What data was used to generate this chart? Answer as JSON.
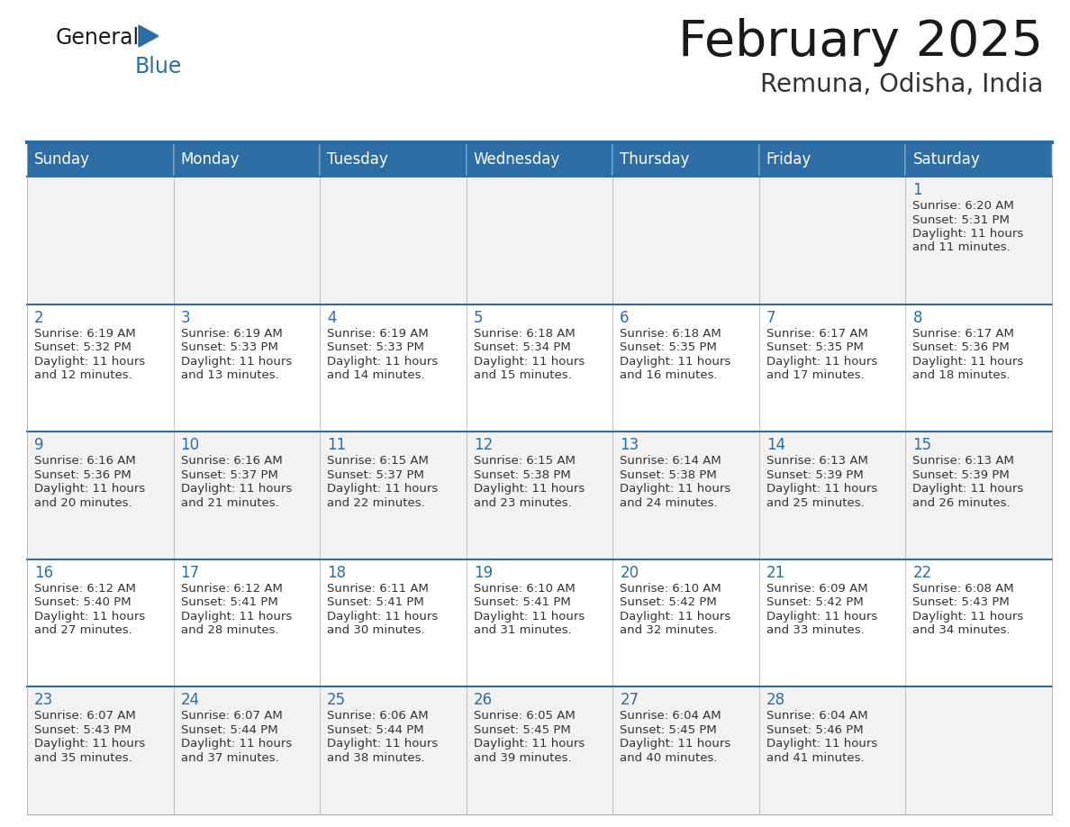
{
  "title": "February 2025",
  "subtitle": "Remuna, Odisha, India",
  "days_of_week": [
    "Sunday",
    "Monday",
    "Tuesday",
    "Wednesday",
    "Thursday",
    "Friday",
    "Saturday"
  ],
  "header_bg": "#2E6DA4",
  "header_text": "#FFFFFF",
  "cell_bg_odd": "#F2F2F2",
  "cell_bg_even": "#FFFFFF",
  "border_color": "#AAAAAA",
  "row_divider_color": "#2E6DA4",
  "title_color": "#1a1a1a",
  "subtitle_color": "#333333",
  "day_num_color": "#2E6DA4",
  "cell_text_color": "#333333",
  "logo_general_color": "#1a1a1a",
  "logo_blue_color": "#2E6DA4",
  "logo_triangle_color": "#2E6DA4",
  "calendar_data": [
    [
      null,
      null,
      null,
      null,
      null,
      null,
      {
        "day": 1,
        "sunrise": "6:20 AM",
        "sunset": "5:31 PM",
        "daylight": "11 hours and 11 minutes."
      }
    ],
    [
      {
        "day": 2,
        "sunrise": "6:19 AM",
        "sunset": "5:32 PM",
        "daylight": "11 hours and 12 minutes."
      },
      {
        "day": 3,
        "sunrise": "6:19 AM",
        "sunset": "5:33 PM",
        "daylight": "11 hours and 13 minutes."
      },
      {
        "day": 4,
        "sunrise": "6:19 AM",
        "sunset": "5:33 PM",
        "daylight": "11 hours and 14 minutes."
      },
      {
        "day": 5,
        "sunrise": "6:18 AM",
        "sunset": "5:34 PM",
        "daylight": "11 hours and 15 minutes."
      },
      {
        "day": 6,
        "sunrise": "6:18 AM",
        "sunset": "5:35 PM",
        "daylight": "11 hours and 16 minutes."
      },
      {
        "day": 7,
        "sunrise": "6:17 AM",
        "sunset": "5:35 PM",
        "daylight": "11 hours and 17 minutes."
      },
      {
        "day": 8,
        "sunrise": "6:17 AM",
        "sunset": "5:36 PM",
        "daylight": "11 hours and 18 minutes."
      }
    ],
    [
      {
        "day": 9,
        "sunrise": "6:16 AM",
        "sunset": "5:36 PM",
        "daylight": "11 hours and 20 minutes."
      },
      {
        "day": 10,
        "sunrise": "6:16 AM",
        "sunset": "5:37 PM",
        "daylight": "11 hours and 21 minutes."
      },
      {
        "day": 11,
        "sunrise": "6:15 AM",
        "sunset": "5:37 PM",
        "daylight": "11 hours and 22 minutes."
      },
      {
        "day": 12,
        "sunrise": "6:15 AM",
        "sunset": "5:38 PM",
        "daylight": "11 hours and 23 minutes."
      },
      {
        "day": 13,
        "sunrise": "6:14 AM",
        "sunset": "5:38 PM",
        "daylight": "11 hours and 24 minutes."
      },
      {
        "day": 14,
        "sunrise": "6:13 AM",
        "sunset": "5:39 PM",
        "daylight": "11 hours and 25 minutes."
      },
      {
        "day": 15,
        "sunrise": "6:13 AM",
        "sunset": "5:39 PM",
        "daylight": "11 hours and 26 minutes."
      }
    ],
    [
      {
        "day": 16,
        "sunrise": "6:12 AM",
        "sunset": "5:40 PM",
        "daylight": "11 hours and 27 minutes."
      },
      {
        "day": 17,
        "sunrise": "6:12 AM",
        "sunset": "5:41 PM",
        "daylight": "11 hours and 28 minutes."
      },
      {
        "day": 18,
        "sunrise": "6:11 AM",
        "sunset": "5:41 PM",
        "daylight": "11 hours and 30 minutes."
      },
      {
        "day": 19,
        "sunrise": "6:10 AM",
        "sunset": "5:41 PM",
        "daylight": "11 hours and 31 minutes."
      },
      {
        "day": 20,
        "sunrise": "6:10 AM",
        "sunset": "5:42 PM",
        "daylight": "11 hours and 32 minutes."
      },
      {
        "day": 21,
        "sunrise": "6:09 AM",
        "sunset": "5:42 PM",
        "daylight": "11 hours and 33 minutes."
      },
      {
        "day": 22,
        "sunrise": "6:08 AM",
        "sunset": "5:43 PM",
        "daylight": "11 hours and 34 minutes."
      }
    ],
    [
      {
        "day": 23,
        "sunrise": "6:07 AM",
        "sunset": "5:43 PM",
        "daylight": "11 hours and 35 minutes."
      },
      {
        "day": 24,
        "sunrise": "6:07 AM",
        "sunset": "5:44 PM",
        "daylight": "11 hours and 37 minutes."
      },
      {
        "day": 25,
        "sunrise": "6:06 AM",
        "sunset": "5:44 PM",
        "daylight": "11 hours and 38 minutes."
      },
      {
        "day": 26,
        "sunrise": "6:05 AM",
        "sunset": "5:45 PM",
        "daylight": "11 hours and 39 minutes."
      },
      {
        "day": 27,
        "sunrise": "6:04 AM",
        "sunset": "5:45 PM",
        "daylight": "11 hours and 40 minutes."
      },
      {
        "day": 28,
        "sunrise": "6:04 AM",
        "sunset": "5:46 PM",
        "daylight": "11 hours and 41 minutes."
      },
      null
    ]
  ]
}
